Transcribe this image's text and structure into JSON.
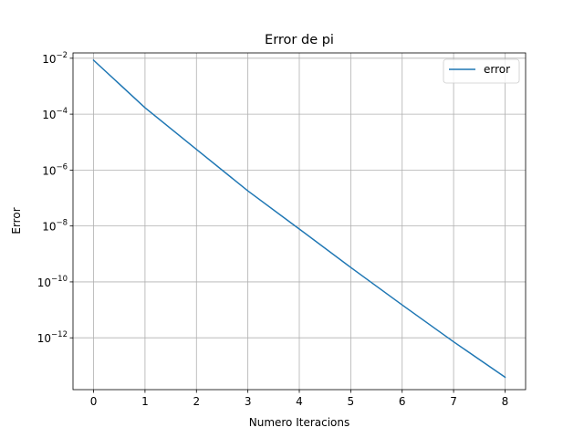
{
  "chart_data": {
    "type": "line",
    "title": "Error de pi",
    "xlabel": "Numero Iteracions",
    "ylabel": "Error",
    "x": [
      0,
      1,
      2,
      3,
      4,
      5,
      6,
      7,
      8
    ],
    "series": [
      {
        "name": "error",
        "color": "#1f77b4",
        "values": [
          0.0085,
          0.00017,
          5.5e-06,
          1.8e-07,
          7.8e-09,
          3.3e-10,
          1.5e-11,
          7.2e-13,
          3.9e-14
        ]
      }
    ],
    "xlim": [
      -0.4,
      8.4
    ],
    "ylim": [
      1.4e-14,
      0.0155
    ],
    "yscale": "log",
    "xticks": [
      0,
      1,
      2,
      3,
      4,
      5,
      6,
      7,
      8
    ],
    "yticks": [
      {
        "value": 0.01,
        "base": "10",
        "exp": "−2"
      },
      {
        "value": 0.0001,
        "base": "10",
        "exp": "−4"
      },
      {
        "value": 1e-06,
        "base": "10",
        "exp": "−6"
      },
      {
        "value": 1e-08,
        "base": "10",
        "exp": "−8"
      },
      {
        "value": 1e-10,
        "base": "10",
        "exp": "−10"
      },
      {
        "value": 1e-12,
        "base": "10",
        "exp": "−12"
      }
    ],
    "grid": true,
    "legend": "upper right"
  }
}
